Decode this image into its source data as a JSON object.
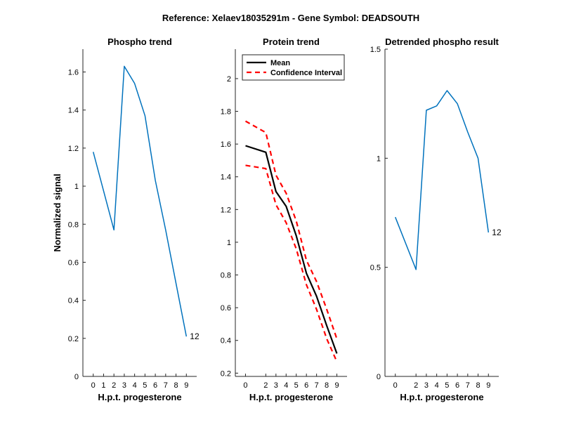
{
  "figure_title": "Reference:  Xelaev18035291m - Gene Symbol:  DEADSOUTH",
  "colors": {
    "blue": "#0072BD",
    "black": "#000000",
    "red": "#FF0000",
    "axis": "#262626"
  },
  "chart_data": [
    {
      "type": "line",
      "title": "Phospho trend",
      "xlabel": "H.p.t. progesterone",
      "ylabel": "Normalized signal",
      "x": [
        0,
        2,
        3,
        4,
        5,
        6,
        7,
        8,
        9
      ],
      "xticks": [
        0,
        1,
        2,
        3,
        4,
        5,
        6,
        7,
        8,
        9
      ],
      "yticks": [
        0,
        0.2,
        0.4,
        0.6,
        0.8,
        1,
        1.2,
        1.4,
        1.6
      ],
      "ylim": [
        0,
        1.72
      ],
      "series": [
        {
          "values": [
            1.18,
            0.77,
            1.63,
            1.54,
            1.37,
            1.03,
            0.77,
            0.49,
            0.21
          ],
          "end_label": "12"
        }
      ]
    },
    {
      "type": "line",
      "title": "Protein trend",
      "xlabel": "H.p.t. progesterone",
      "ylabel": "",
      "x": [
        0,
        2,
        3,
        4,
        5,
        6,
        7,
        8,
        9
      ],
      "xticks": [
        0,
        2,
        3,
        4,
        5,
        6,
        7,
        8,
        9
      ],
      "yticks": [
        0.2,
        0.4,
        0.6,
        0.8,
        1,
        1.2,
        1.4,
        1.6,
        1.8,
        2
      ],
      "ylim": [
        0.18,
        2.18
      ],
      "legend": "top-left",
      "series": [
        {
          "name": "Mean",
          "values": [
            1.59,
            1.55,
            1.31,
            1.22,
            1.04,
            0.81,
            0.67,
            0.49,
            0.32
          ]
        },
        {
          "name": "Confidence Interval",
          "values": [
            1.74,
            1.67,
            1.41,
            1.3,
            1.13,
            0.89,
            0.76,
            0.59,
            0.41
          ]
        },
        {
          "values": [
            1.47,
            1.45,
            1.23,
            1.12,
            0.96,
            0.74,
            0.59,
            0.41,
            0.27
          ]
        }
      ]
    },
    {
      "type": "line",
      "title": "Detrended phospho result",
      "xlabel": "H.p.t. progesterone",
      "ylabel": "",
      "x": [
        0,
        2,
        3,
        4,
        5,
        6,
        7,
        8,
        9
      ],
      "xticks": [
        0,
        2,
        3,
        4,
        5,
        6,
        7,
        8,
        9
      ],
      "yticks": [
        0,
        0.5,
        1,
        1.5
      ],
      "ylim": [
        0,
        1.5
      ],
      "series": [
        {
          "values": [
            0.73,
            0.49,
            1.22,
            1.24,
            1.31,
            1.25,
            1.12,
            1.0,
            0.66
          ],
          "end_label": "12"
        }
      ]
    }
  ]
}
